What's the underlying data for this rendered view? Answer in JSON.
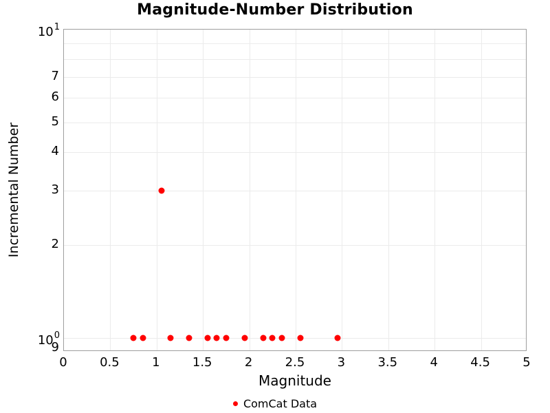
{
  "title": "Magnitude-Number Distribution",
  "colors": {
    "marker": "#ff0000",
    "grid": "#ebebeb",
    "axis_line": "#9e9e9e",
    "text": "#000000",
    "background": "#ffffff"
  },
  "chart_data": {
    "type": "scatter",
    "title": "Magnitude-Number Distribution",
    "xlabel": "Magnitude",
    "ylabel": "Incremental Number",
    "x_axis": {
      "scale": "linear",
      "min": 0,
      "max": 5,
      "ticks": [
        {
          "v": 0,
          "label": "0"
        },
        {
          "v": 0.5,
          "label": "0.5"
        },
        {
          "v": 1,
          "label": "1"
        },
        {
          "v": 1.5,
          "label": "1.5"
        },
        {
          "v": 2,
          "label": "2"
        },
        {
          "v": 2.5,
          "label": "2.5"
        },
        {
          "v": 3,
          "label": "3"
        },
        {
          "v": 3.5,
          "label": "3.5"
        },
        {
          "v": 4,
          "label": "4"
        },
        {
          "v": 4.5,
          "label": "4.5"
        },
        {
          "v": 5,
          "label": "5"
        }
      ],
      "gridlines": [
        0.5,
        1,
        1.5,
        2,
        2.5,
        3,
        3.5,
        4,
        4.5
      ]
    },
    "y_axis": {
      "scale": "log",
      "min": 0.9,
      "max": 10,
      "ticks": [
        {
          "v": 10,
          "base": "10",
          "exp": "1"
        },
        {
          "v": 7,
          "label": "7"
        },
        {
          "v": 6,
          "label": "6"
        },
        {
          "v": 5,
          "label": "5"
        },
        {
          "v": 4,
          "label": "4"
        },
        {
          "v": 3,
          "label": "3"
        },
        {
          "v": 2,
          "label": "2"
        },
        {
          "v": 1,
          "base": "10",
          "exp": "0"
        },
        {
          "v": 0.9,
          "label": "9"
        }
      ],
      "gridlines": [
        1,
        2,
        3,
        4,
        5,
        6,
        7,
        8,
        9
      ]
    },
    "legend": {
      "position": "bottom-center",
      "entries": [
        {
          "label": "ComCat Data",
          "color": "#ff0000"
        }
      ]
    },
    "series": [
      {
        "name": "ComCat Data",
        "color": "#ff0000",
        "marker": "circle",
        "marker_size": 9,
        "points": [
          [
            0.75,
            1
          ],
          [
            0.85,
            1
          ],
          [
            1.05,
            3
          ],
          [
            1.15,
            1
          ],
          [
            1.35,
            1
          ],
          [
            1.55,
            1
          ],
          [
            1.65,
            1
          ],
          [
            1.75,
            1
          ],
          [
            1.95,
            1
          ],
          [
            2.15,
            1
          ],
          [
            2.25,
            1
          ],
          [
            2.35,
            1
          ],
          [
            2.55,
            1
          ],
          [
            2.95,
            1
          ]
        ]
      }
    ]
  }
}
